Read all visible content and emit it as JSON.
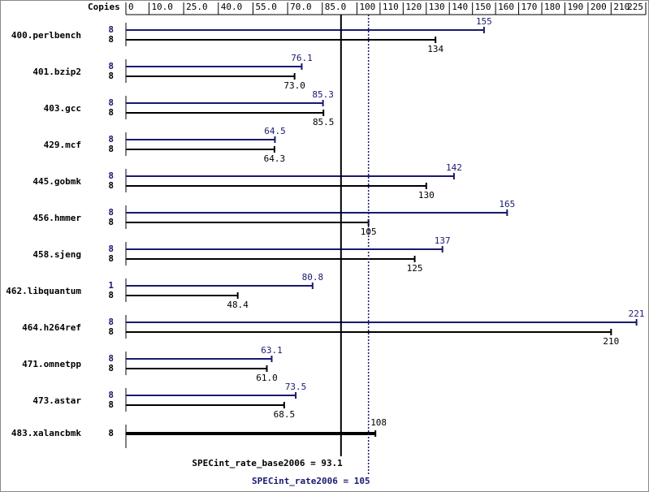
{
  "chart_data": {
    "type": "bar",
    "axis_label": "Copies",
    "categories": [
      "400.perlbench",
      "401.bzip2",
      "403.gcc",
      "429.mcf",
      "445.gobmk",
      "456.hmmer",
      "458.sjeng",
      "462.libquantum",
      "464.h264ref",
      "471.omnetpp",
      "473.astar",
      "483.xalancbmk"
    ],
    "series": [
      {
        "color": "#191970",
        "copies": [
          8,
          8,
          8,
          8,
          8,
          8,
          8,
          1,
          8,
          8,
          8,
          null
        ],
        "values": [
          155,
          76.1,
          85.3,
          64.5,
          142,
          165,
          137,
          80.8,
          221,
          63.1,
          73.5,
          null
        ]
      },
      {
        "color": "#000000",
        "copies": [
          8,
          8,
          8,
          8,
          8,
          8,
          8,
          8,
          8,
          8,
          8,
          8
        ],
        "values": [
          134,
          73.0,
          85.5,
          64.3,
          130,
          105,
          125,
          48.4,
          210,
          61.0,
          68.5,
          108
        ],
        "value_labels": [
          "134",
          "73.0",
          "85.5",
          "64.3",
          "130",
          "105",
          "125",
          "48.4",
          "210",
          "61.0",
          "68.5",
          "108"
        ]
      }
    ],
    "xlim": [
      0,
      225
    ],
    "xticks": [
      0,
      {
        "value": 10,
        "label": "10.0"
      },
      {
        "value": 25,
        "label": "25.0"
      },
      {
        "value": 40,
        "label": "40.0"
      },
      {
        "value": 55,
        "label": "55.0"
      },
      {
        "value": 70,
        "label": "70.0"
      },
      {
        "value": 85,
        "label": "85.0"
      },
      100,
      110,
      120,
      130,
      140,
      150,
      160,
      170,
      180,
      190,
      200,
      210,
      225
    ],
    "reference_lines": [
      {
        "label": "SPECint_rate_base2006 = 93.1",
        "value": 93.1,
        "color": "#000000"
      },
      {
        "label": "SPECint_rate2006 = 105",
        "value": 105,
        "color": "#191970"
      }
    ]
  }
}
